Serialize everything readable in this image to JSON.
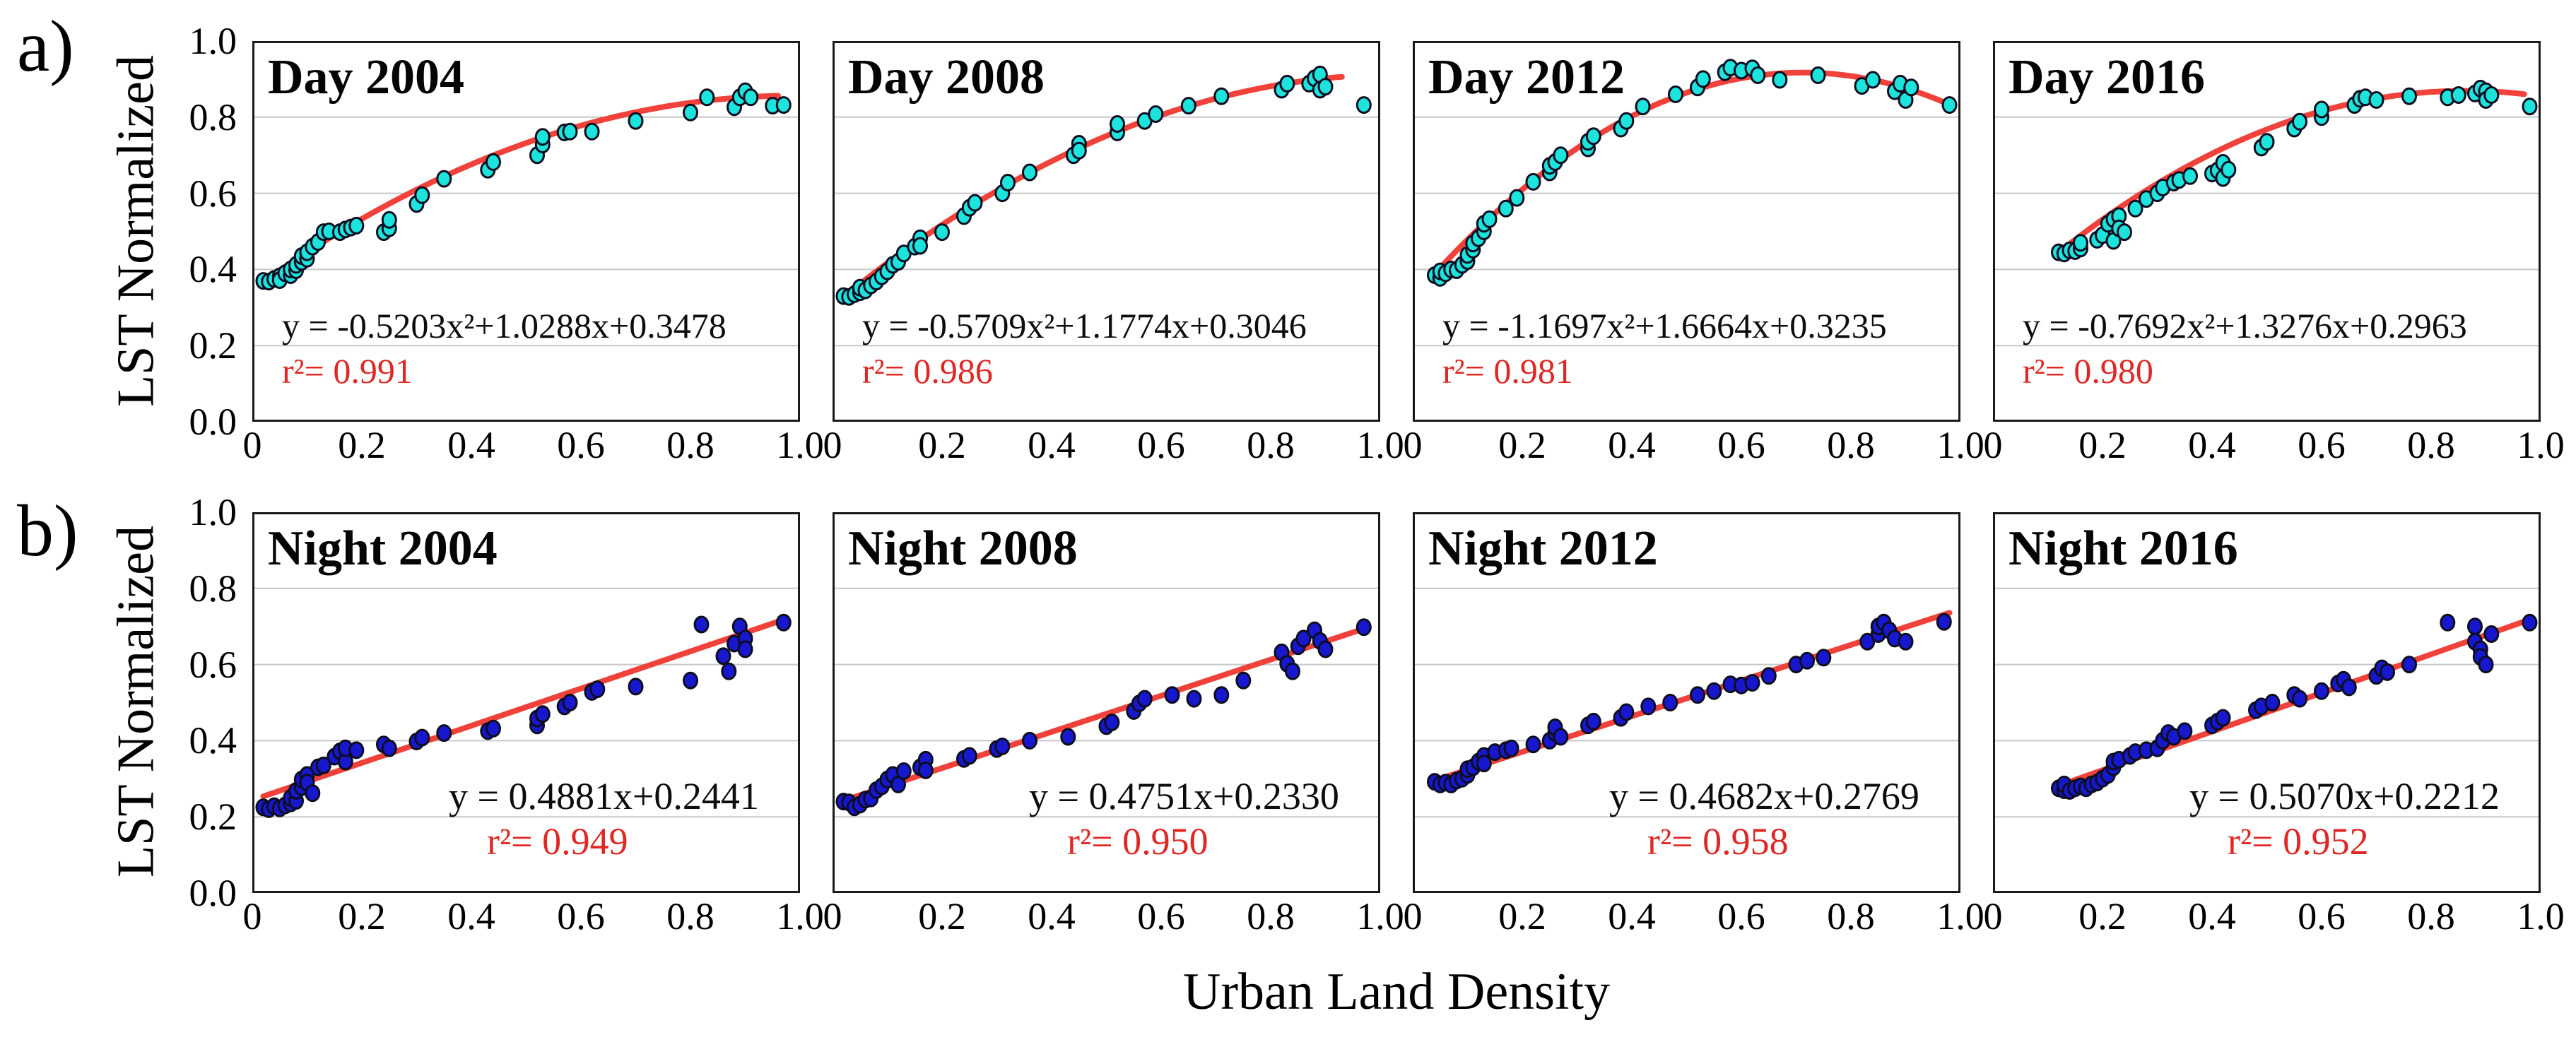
{
  "figure": {
    "row_label_a": "a)",
    "row_label_b": "b)",
    "y_axis_label": "LST Normalized",
    "x_axis_label": "Urban Land Density",
    "colors": {
      "day_point": "#1DE3DD",
      "night_point": "#1717CE",
      "point_stroke": "#0D0D20",
      "fit_line": "#F0413A",
      "r2_text": "#E02723",
      "grid": "#C8C8C8"
    }
  },
  "axes": {
    "x_range": [
      0,
      1.0
    ],
    "y_range": [
      0,
      1.0
    ],
    "x_ticks": [
      "0",
      "0.2",
      "0.4",
      "0.6",
      "0.8",
      "1.0"
    ],
    "y_ticks": [
      "0.0",
      "0.2",
      "0.4",
      "0.6",
      "0.8",
      "1.0"
    ],
    "grid": "horizontal-only"
  },
  "chart_data": [
    {
      "type": "scatter",
      "row": "a",
      "series": "day",
      "title": "Day 2004",
      "equation": "y = -0.5203x²+1.0288x+0.3478",
      "r2_label": "r²= 0.991",
      "r2_value": 0.991,
      "fit": {
        "kind": "quadratic",
        "a": -0.5203,
        "b": 1.0288,
        "c": 0.3478,
        "x_start": 0.02,
        "x_end": 0.96
      },
      "x": [
        0.02,
        0.03,
        0.04,
        0.05,
        0.05,
        0.06,
        0.07,
        0.07,
        0.08,
        0.08,
        0.09,
        0.09,
        0.1,
        0.1,
        0.11,
        0.12,
        0.13,
        0.14,
        0.16,
        0.17,
        0.18,
        0.19,
        0.24,
        0.25,
        0.25,
        0.3,
        0.31,
        0.35,
        0.43,
        0.44,
        0.52,
        0.53,
        0.53,
        0.57,
        0.58,
        0.62,
        0.7,
        0.8,
        0.83,
        0.88,
        0.89,
        0.9,
        0.91,
        0.95,
        0.97
      ],
      "y": [
        0.37,
        0.368,
        0.375,
        0.382,
        0.372,
        0.39,
        0.385,
        0.4,
        0.398,
        0.412,
        0.42,
        0.435,
        0.428,
        0.445,
        0.46,
        0.472,
        0.498,
        0.5,
        0.498,
        0.505,
        0.51,
        0.515,
        0.498,
        0.508,
        0.53,
        0.572,
        0.595,
        0.638,
        0.662,
        0.682,
        0.7,
        0.728,
        0.748,
        0.76,
        0.762,
        0.762,
        0.79,
        0.812,
        0.852,
        0.826,
        0.852,
        0.868,
        0.852,
        0.83,
        0.832
      ]
    },
    {
      "type": "scatter",
      "row": "a",
      "series": "day",
      "title": "Day 2008",
      "equation": "y = -0.5709x²+1.1774x+0.3046",
      "r2_label": "r²= 0.986",
      "r2_value": 0.986,
      "fit": {
        "kind": "quadratic",
        "a": -0.5709,
        "b": 1.1774,
        "c": 0.3046,
        "x_start": 0.02,
        "x_end": 0.93
      },
      "x": [
        0.02,
        0.03,
        0.04,
        0.05,
        0.05,
        0.06,
        0.07,
        0.08,
        0.09,
        0.1,
        0.11,
        0.12,
        0.13,
        0.15,
        0.16,
        0.16,
        0.2,
        0.24,
        0.25,
        0.26,
        0.31,
        0.32,
        0.36,
        0.44,
        0.45,
        0.45,
        0.52,
        0.52,
        0.57,
        0.59,
        0.65,
        0.71,
        0.82,
        0.83,
        0.87,
        0.88,
        0.89,
        0.89,
        0.9,
        0.97
      ],
      "y": [
        0.33,
        0.328,
        0.335,
        0.34,
        0.352,
        0.345,
        0.358,
        0.368,
        0.382,
        0.395,
        0.412,
        0.42,
        0.442,
        0.46,
        0.482,
        0.462,
        0.498,
        0.54,
        0.562,
        0.575,
        0.6,
        0.628,
        0.655,
        0.7,
        0.73,
        0.712,
        0.76,
        0.782,
        0.79,
        0.808,
        0.83,
        0.855,
        0.872,
        0.888,
        0.888,
        0.902,
        0.912,
        0.872,
        0.88,
        0.832
      ]
    },
    {
      "type": "scatter",
      "row": "a",
      "series": "day",
      "title": "Day 2012",
      "equation": "y = -1.1697x²+1.6664x+0.3235",
      "r2_label": "r²= 0.981",
      "r2_value": 0.981,
      "fit": {
        "kind": "quadratic",
        "a": -1.1697,
        "b": 1.6664,
        "c": 0.3235,
        "x_start": 0.05,
        "x_end": 0.98
      },
      "x": [
        0.04,
        0.05,
        0.05,
        0.06,
        0.07,
        0.08,
        0.09,
        0.1,
        0.1,
        0.11,
        0.11,
        0.12,
        0.13,
        0.13,
        0.14,
        0.17,
        0.19,
        0.22,
        0.25,
        0.25,
        0.26,
        0.27,
        0.32,
        0.32,
        0.33,
        0.38,
        0.39,
        0.42,
        0.48,
        0.52,
        0.53,
        0.57,
        0.58,
        0.6,
        0.62,
        0.63,
        0.67,
        0.74,
        0.82,
        0.84,
        0.88,
        0.89,
        0.9,
        0.91,
        0.98
      ],
      "y": [
        0.385,
        0.378,
        0.395,
        0.39,
        0.4,
        0.398,
        0.412,
        0.422,
        0.438,
        0.452,
        0.468,
        0.482,
        0.5,
        0.52,
        0.532,
        0.56,
        0.588,
        0.63,
        0.655,
        0.672,
        0.682,
        0.7,
        0.718,
        0.735,
        0.75,
        0.77,
        0.79,
        0.828,
        0.86,
        0.878,
        0.9,
        0.918,
        0.93,
        0.922,
        0.928,
        0.91,
        0.898,
        0.91,
        0.882,
        0.898,
        0.868,
        0.888,
        0.845,
        0.878,
        0.832
      ]
    },
    {
      "type": "scatter",
      "row": "a",
      "series": "day",
      "title": "Day 2016",
      "equation": "y = -0.7692x²+1.3276x+0.2963",
      "r2_label": "r²= 0.980",
      "r2_value": 0.98,
      "fit": {
        "kind": "quadratic",
        "a": -0.7692,
        "b": 1.3276,
        "c": 0.2963,
        "x_start": 0.12,
        "x_end": 0.97
      },
      "x": [
        0.12,
        0.13,
        0.14,
        0.15,
        0.16,
        0.16,
        0.19,
        0.2,
        0.21,
        0.22,
        0.22,
        0.23,
        0.23,
        0.24,
        0.26,
        0.28,
        0.3,
        0.31,
        0.33,
        0.34,
        0.36,
        0.4,
        0.41,
        0.42,
        0.42,
        0.43,
        0.49,
        0.5,
        0.55,
        0.56,
        0.6,
        0.6,
        0.66,
        0.67,
        0.68,
        0.7,
        0.76,
        0.83,
        0.85,
        0.88,
        0.89,
        0.9,
        0.9,
        0.91,
        0.98
      ],
      "y": [
        0.445,
        0.442,
        0.45,
        0.448,
        0.455,
        0.47,
        0.478,
        0.49,
        0.52,
        0.532,
        0.475,
        0.54,
        0.508,
        0.498,
        0.56,
        0.585,
        0.6,
        0.615,
        0.628,
        0.635,
        0.645,
        0.652,
        0.66,
        0.68,
        0.64,
        0.662,
        0.72,
        0.735,
        0.77,
        0.788,
        0.8,
        0.82,
        0.832,
        0.848,
        0.852,
        0.845,
        0.855,
        0.852,
        0.858,
        0.862,
        0.875,
        0.868,
        0.845,
        0.858,
        0.828
      ]
    },
    {
      "type": "scatter",
      "row": "b",
      "series": "night",
      "title": "Night 2004",
      "equation": "y = 0.4881x+0.2441",
      "r2_label": "r²= 0.949",
      "r2_value": 0.949,
      "fit": {
        "kind": "linear",
        "m": 0.4881,
        "b": 0.2441,
        "x_start": 0.02,
        "x_end": 0.97
      },
      "x": [
        0.02,
        0.03,
        0.04,
        0.05,
        0.06,
        0.07,
        0.07,
        0.08,
        0.08,
        0.09,
        0.09,
        0.1,
        0.1,
        0.11,
        0.12,
        0.13,
        0.15,
        0.16,
        0.17,
        0.17,
        0.19,
        0.24,
        0.25,
        0.3,
        0.31,
        0.35,
        0.43,
        0.44,
        0.52,
        0.52,
        0.53,
        0.57,
        0.58,
        0.62,
        0.63,
        0.7,
        0.8,
        0.82,
        0.86,
        0.87,
        0.88,
        0.89,
        0.9,
        0.9,
        0.97
      ],
      "y": [
        0.225,
        0.22,
        0.228,
        0.222,
        0.23,
        0.235,
        0.25,
        0.242,
        0.268,
        0.278,
        0.298,
        0.31,
        0.29,
        0.262,
        0.33,
        0.335,
        0.358,
        0.372,
        0.345,
        0.38,
        0.375,
        0.39,
        0.38,
        0.398,
        0.408,
        0.42,
        0.425,
        0.432,
        0.44,
        0.458,
        0.47,
        0.49,
        0.5,
        0.528,
        0.535,
        0.542,
        0.558,
        0.705,
        0.622,
        0.582,
        0.655,
        0.7,
        0.668,
        0.64,
        0.71
      ]
    },
    {
      "type": "scatter",
      "row": "b",
      "series": "night",
      "title": "Night 2008",
      "equation": "y = 0.4751x+0.2330",
      "r2_label": "r²= 0.950",
      "r2_value": 0.95,
      "fit": {
        "kind": "linear",
        "m": 0.4751,
        "b": 0.233,
        "x_start": 0.02,
        "x_end": 0.97
      },
      "x": [
        0.02,
        0.03,
        0.04,
        0.05,
        0.06,
        0.07,
        0.08,
        0.09,
        0.1,
        0.11,
        0.12,
        0.13,
        0.16,
        0.17,
        0.17,
        0.24,
        0.25,
        0.3,
        0.31,
        0.36,
        0.43,
        0.5,
        0.51,
        0.55,
        0.56,
        0.57,
        0.62,
        0.66,
        0.71,
        0.75,
        0.82,
        0.83,
        0.84,
        0.85,
        0.86,
        0.88,
        0.89,
        0.9,
        0.97
      ],
      "y": [
        0.24,
        0.238,
        0.225,
        0.232,
        0.245,
        0.248,
        0.27,
        0.28,
        0.298,
        0.31,
        0.285,
        0.32,
        0.33,
        0.35,
        0.322,
        0.352,
        0.36,
        0.378,
        0.385,
        0.4,
        0.41,
        0.438,
        0.448,
        0.478,
        0.498,
        0.51,
        0.52,
        0.51,
        0.52,
        0.558,
        0.632,
        0.602,
        0.582,
        0.648,
        0.668,
        0.69,
        0.662,
        0.64,
        0.698
      ]
    },
    {
      "type": "scatter",
      "row": "b",
      "series": "night",
      "title": "Night 2012",
      "equation": "y = 0.4682x+0.2769",
      "r2_label": "r²= 0.958",
      "r2_value": 0.958,
      "fit": {
        "kind": "linear",
        "m": 0.4682,
        "b": 0.2769,
        "x_start": 0.04,
        "x_end": 0.98
      },
      "x": [
        0.04,
        0.05,
        0.06,
        0.07,
        0.08,
        0.09,
        0.1,
        0.1,
        0.11,
        0.12,
        0.13,
        0.13,
        0.15,
        0.17,
        0.18,
        0.22,
        0.25,
        0.26,
        0.26,
        0.27,
        0.32,
        0.33,
        0.38,
        0.39,
        0.43,
        0.47,
        0.52,
        0.55,
        0.58,
        0.6,
        0.62,
        0.65,
        0.7,
        0.72,
        0.75,
        0.83,
        0.85,
        0.85,
        0.86,
        0.87,
        0.88,
        0.9,
        0.97
      ],
      "y": [
        0.292,
        0.285,
        0.29,
        0.285,
        0.295,
        0.3,
        0.31,
        0.325,
        0.33,
        0.345,
        0.36,
        0.34,
        0.37,
        0.375,
        0.38,
        0.39,
        0.4,
        0.42,
        0.435,
        0.41,
        0.44,
        0.45,
        0.46,
        0.475,
        0.49,
        0.5,
        0.52,
        0.53,
        0.548,
        0.545,
        0.552,
        0.57,
        0.6,
        0.61,
        0.618,
        0.66,
        0.68,
        0.7,
        0.71,
        0.69,
        0.668,
        0.66,
        0.712
      ]
    },
    {
      "type": "scatter",
      "row": "b",
      "series": "night",
      "title": "Night 2016",
      "equation": "y = 0.5070x+0.2212",
      "r2_label": "r²= 0.952",
      "r2_value": 0.952,
      "fit": {
        "kind": "linear",
        "m": 0.507,
        "b": 0.2212,
        "x_start": 0.12,
        "x_end": 0.98
      },
      "x": [
        0.12,
        0.13,
        0.13,
        0.14,
        0.15,
        0.16,
        0.17,
        0.18,
        0.19,
        0.2,
        0.21,
        0.22,
        0.22,
        0.23,
        0.25,
        0.26,
        0.28,
        0.3,
        0.31,
        0.32,
        0.33,
        0.35,
        0.4,
        0.41,
        0.42,
        0.48,
        0.49,
        0.51,
        0.55,
        0.56,
        0.6,
        0.63,
        0.64,
        0.65,
        0.7,
        0.71,
        0.72,
        0.76,
        0.83,
        0.88,
        0.88,
        0.89,
        0.89,
        0.9,
        0.91,
        0.98
      ],
      "y": [
        0.275,
        0.27,
        0.285,
        0.268,
        0.275,
        0.28,
        0.275,
        0.285,
        0.29,
        0.3,
        0.31,
        0.33,
        0.345,
        0.35,
        0.36,
        0.37,
        0.375,
        0.38,
        0.4,
        0.42,
        0.41,
        0.425,
        0.44,
        0.45,
        0.46,
        0.48,
        0.49,
        0.5,
        0.52,
        0.51,
        0.53,
        0.55,
        0.56,
        0.54,
        0.57,
        0.59,
        0.58,
        0.6,
        0.71,
        0.7,
        0.66,
        0.64,
        0.62,
        0.6,
        0.68,
        0.71
      ]
    }
  ]
}
